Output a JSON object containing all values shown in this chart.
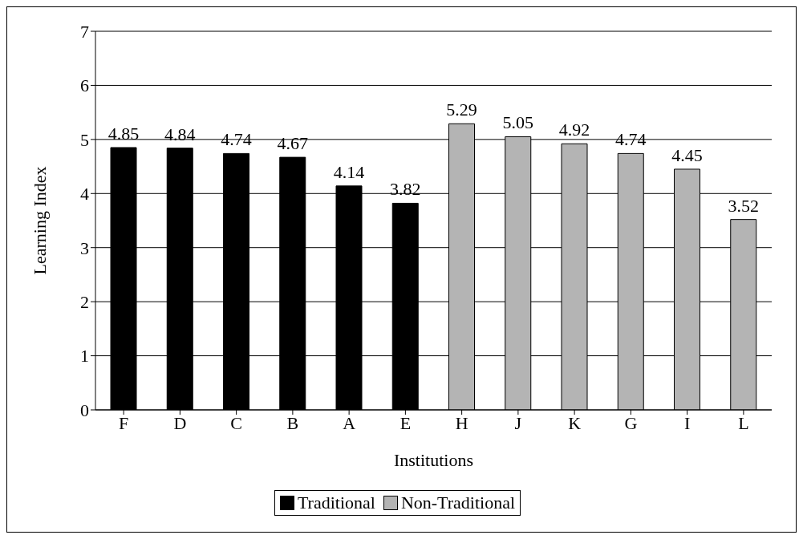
{
  "chart_data": {
    "type": "bar",
    "xlabel": "Institutions",
    "ylabel": "Learning Index",
    "categories": [
      "F",
      "D",
      "C",
      "B",
      "A",
      "E",
      "H",
      "J",
      "K",
      "G",
      "I",
      "L"
    ],
    "series": [
      {
        "name": "Traditional",
        "color": "#000000",
        "values": [
          4.85,
          4.84,
          4.74,
          4.67,
          4.14,
          3.82,
          null,
          null,
          null,
          null,
          null,
          null
        ]
      },
      {
        "name": "Non-Traditional",
        "color": "#b4b4b4",
        "values": [
          null,
          null,
          null,
          null,
          null,
          null,
          5.29,
          5.05,
          4.92,
          4.74,
          4.45,
          3.52
        ]
      }
    ],
    "ylim": [
      0,
      7
    ],
    "yticks": [
      0,
      1,
      2,
      3,
      4,
      5,
      6,
      7
    ],
    "grid": "y",
    "legend": "bottom",
    "data_labels": true
  }
}
